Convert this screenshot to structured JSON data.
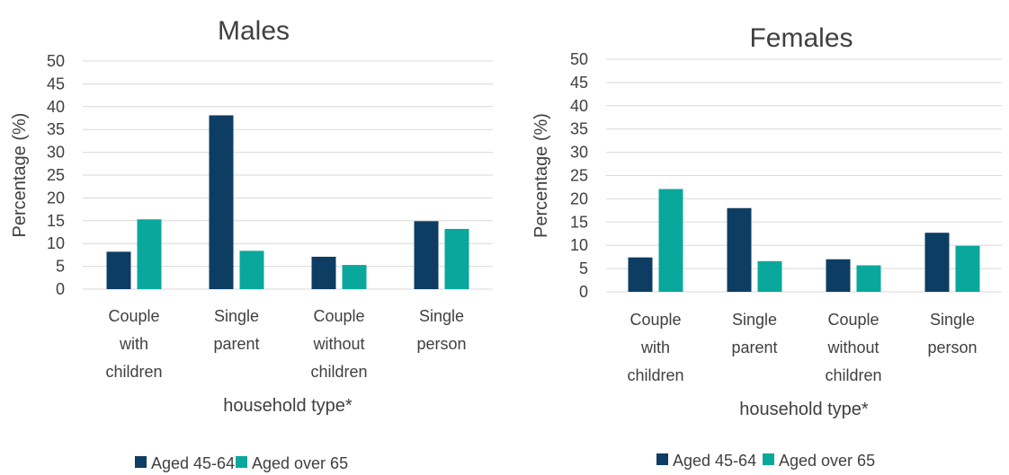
{
  "colors": {
    "aged_45_64": "#0d3d63",
    "aged_over_65": "#0aa89c",
    "grid": "#d9d9d9",
    "text": "#404040"
  },
  "chart_data": [
    {
      "type": "bar",
      "title": "Males",
      "xlabel": "household type*",
      "ylabel": "Percentage (%)",
      "ylim": [
        0,
        50
      ],
      "yticks": [
        "0",
        "5",
        "10",
        "15",
        "20",
        "25",
        "30",
        "35",
        "40",
        "45",
        "50"
      ],
      "grid": true,
      "legend_position": "bottom",
      "categories": [
        "Couple with children",
        "Single parent",
        "Couple without children",
        "Single person"
      ],
      "category_lines": [
        [
          "Couple",
          "with",
          "children"
        ],
        [
          "Single",
          "parent"
        ],
        [
          "Couple",
          "without",
          "children"
        ],
        [
          "Single",
          "person"
        ]
      ],
      "series": [
        {
          "name": "Aged 45-64",
          "values": [
            8.2,
            38.1,
            7.1,
            14.9
          ]
        },
        {
          "name": "Aged over 65",
          "values": [
            15.3,
            8.4,
            5.3,
            13.2
          ]
        }
      ]
    },
    {
      "type": "bar",
      "title": "Females",
      "xlabel": "household type*",
      "ylabel": "Percentage (%)",
      "ylim": [
        0,
        50
      ],
      "yticks": [
        "0",
        "5",
        "10",
        "15",
        "20",
        "25",
        "30",
        "35",
        "40",
        "45",
        "50"
      ],
      "grid": true,
      "legend_position": "bottom",
      "categories": [
        "Couple with children",
        "Single parent",
        "Couple without children",
        "Single person"
      ],
      "category_lines": [
        [
          "Couple",
          "with",
          "children"
        ],
        [
          "Single",
          "parent"
        ],
        [
          "Couple",
          "without",
          "children"
        ],
        [
          "Single",
          "person"
        ]
      ],
      "series": [
        {
          "name": "Aged 45-64",
          "values": [
            7.4,
            18.0,
            7.0,
            12.7
          ]
        },
        {
          "name": "Aged over 65",
          "values": [
            22.1,
            6.6,
            5.7,
            9.9
          ]
        }
      ]
    }
  ]
}
